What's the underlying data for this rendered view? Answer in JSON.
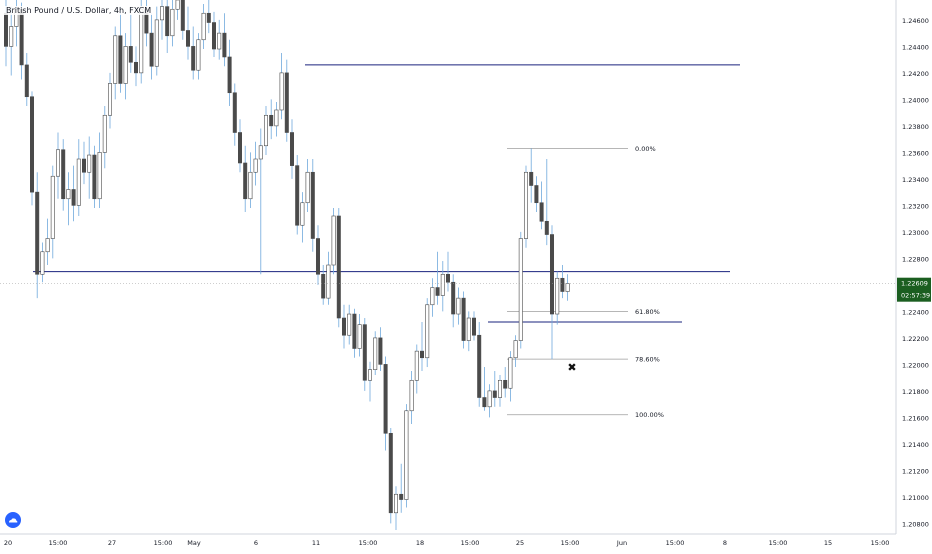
{
  "header": {
    "title": "British Pound / U.S. Dollar, 4h, FXCM"
  },
  "logo": {
    "name": "tradingview"
  },
  "colors": {
    "up_candle": "#ffffff",
    "down_candle": "#4a4a4a",
    "wick": "#6fa8dc",
    "horizontal_line": "#1a237e",
    "fib_line": "#9e9e9e",
    "price_label_bg": "#1b5e20",
    "axis_text": "#131722"
  },
  "chart_data": {
    "type": "candlestick",
    "title": "British Pound / U.S. Dollar, 4h, FXCM",
    "ylim": [
      1.2072,
      1.2475
    ],
    "y_ticks": [
      "1.24600",
      "1.24400",
      "1.24200",
      "1.24000",
      "1.23800",
      "1.23600",
      "1.23400",
      "1.23200",
      "1.23000",
      "1.22800",
      "1.22400",
      "1.22200",
      "1.22000",
      "1.21800",
      "1.21600",
      "1.21400",
      "1.21200",
      "1.21000",
      "1.20800"
    ],
    "x_ticks": [
      "20",
      "15:00",
      "27",
      "15:00",
      "May",
      "6",
      "11",
      "15:00",
      "18",
      "15:00",
      "25",
      "15:00",
      "Jun",
      "15:00",
      "8",
      "15:00",
      "15",
      "15:00"
    ],
    "last_price": "1.22609",
    "countdown": "02:57:39",
    "horizontal_levels": [
      1.2426,
      1.227,
      1.2232
    ],
    "fibonacci": [
      {
        "label": "0.00%",
        "value": 1.2363
      },
      {
        "label": "61.80%",
        "value": 1.224
      },
      {
        "label": "78.60%",
        "value": 1.2204
      },
      {
        "label": "100.00%",
        "value": 1.2162
      }
    ],
    "marker": {
      "symbol": "✖",
      "value": 1.2198
    },
    "candles": [
      {
        "o": 1.2465,
        "h": 1.248,
        "l": 1.2425,
        "c": 1.244
      },
      {
        "o": 1.244,
        "h": 1.247,
        "l": 1.2418,
        "c": 1.2455
      },
      {
        "o": 1.2455,
        "h": 1.2478,
        "l": 1.244,
        "c": 1.2468
      },
      {
        "o": 1.2468,
        "h": 1.2473,
        "l": 1.2415,
        "c": 1.2426
      },
      {
        "o": 1.2426,
        "h": 1.2435,
        "l": 1.2395,
        "c": 1.2402
      },
      {
        "o": 1.2402,
        "h": 1.2406,
        "l": 1.232,
        "c": 1.233
      },
      {
        "o": 1.233,
        "h": 1.2345,
        "l": 1.225,
        "c": 1.2268
      },
      {
        "o": 1.2268,
        "h": 1.2292,
        "l": 1.2262,
        "c": 1.2285
      },
      {
        "o": 1.2285,
        "h": 1.231,
        "l": 1.2275,
        "c": 1.2295
      },
      {
        "o": 1.2295,
        "h": 1.235,
        "l": 1.228,
        "c": 1.2342
      },
      {
        "o": 1.2342,
        "h": 1.2375,
        "l": 1.2325,
        "c": 1.2362
      },
      {
        "o": 1.2362,
        "h": 1.237,
        "l": 1.2316,
        "c": 1.2325
      },
      {
        "o": 1.2325,
        "h": 1.2345,
        "l": 1.2305,
        "c": 1.2332
      },
      {
        "o": 1.2332,
        "h": 1.235,
        "l": 1.2308,
        "c": 1.232
      },
      {
        "o": 1.232,
        "h": 1.237,
        "l": 1.2312,
        "c": 1.2355
      },
      {
        "o": 1.2355,
        "h": 1.2368,
        "l": 1.2336,
        "c": 1.2345
      },
      {
        "o": 1.2345,
        "h": 1.2372,
        "l": 1.2325,
        "c": 1.2358
      },
      {
        "o": 1.2358,
        "h": 1.2365,
        "l": 1.2318,
        "c": 1.2325
      },
      {
        "o": 1.2325,
        "h": 1.2375,
        "l": 1.2318,
        "c": 1.236
      },
      {
        "o": 1.236,
        "h": 1.2395,
        "l": 1.2348,
        "c": 1.2388
      },
      {
        "o": 1.2388,
        "h": 1.242,
        "l": 1.2378,
        "c": 1.2412
      },
      {
        "o": 1.2412,
        "h": 1.2455,
        "l": 1.24,
        "c": 1.2448
      },
      {
        "o": 1.2448,
        "h": 1.247,
        "l": 1.2405,
        "c": 1.2412
      },
      {
        "o": 1.2412,
        "h": 1.245,
        "l": 1.24,
        "c": 1.244
      },
      {
        "o": 1.244,
        "h": 1.2465,
        "l": 1.242,
        "c": 1.2428
      },
      {
        "o": 1.2428,
        "h": 1.244,
        "l": 1.241,
        "c": 1.242
      },
      {
        "o": 1.242,
        "h": 1.2475,
        "l": 1.2412,
        "c": 1.2468
      },
      {
        "o": 1.2468,
        "h": 1.248,
        "l": 1.244,
        "c": 1.245
      },
      {
        "o": 1.245,
        "h": 1.2465,
        "l": 1.2415,
        "c": 1.2425
      },
      {
        "o": 1.2425,
        "h": 1.247,
        "l": 1.2418,
        "c": 1.246
      },
      {
        "o": 1.246,
        "h": 1.248,
        "l": 1.2445,
        "c": 1.247
      },
      {
        "o": 1.247,
        "h": 1.2478,
        "l": 1.2435,
        "c": 1.2448
      },
      {
        "o": 1.2448,
        "h": 1.2475,
        "l": 1.244,
        "c": 1.2468
      },
      {
        "o": 1.2468,
        "h": 1.248,
        "l": 1.246,
        "c": 1.2475
      },
      {
        "o": 1.2475,
        "h": 1.2478,
        "l": 1.2445,
        "c": 1.2452
      },
      {
        "o": 1.2452,
        "h": 1.247,
        "l": 1.243,
        "c": 1.244
      },
      {
        "o": 1.244,
        "h": 1.2455,
        "l": 1.2415,
        "c": 1.2422
      },
      {
        "o": 1.2422,
        "h": 1.245,
        "l": 1.2415,
        "c": 1.2445
      },
      {
        "o": 1.2445,
        "h": 1.2472,
        "l": 1.2438,
        "c": 1.2465
      },
      {
        "o": 1.2465,
        "h": 1.2478,
        "l": 1.245,
        "c": 1.2458
      },
      {
        "o": 1.2458,
        "h": 1.2466,
        "l": 1.2432,
        "c": 1.2438
      },
      {
        "o": 1.2438,
        "h": 1.246,
        "l": 1.243,
        "c": 1.245
      },
      {
        "o": 1.245,
        "h": 1.2465,
        "l": 1.2425,
        "c": 1.2432
      },
      {
        "o": 1.2432,
        "h": 1.2445,
        "l": 1.2395,
        "c": 1.2405
      },
      {
        "o": 1.2405,
        "h": 1.2412,
        "l": 1.2365,
        "c": 1.2375
      },
      {
        "o": 1.2375,
        "h": 1.2385,
        "l": 1.2345,
        "c": 1.2352
      },
      {
        "o": 1.2352,
        "h": 1.2365,
        "l": 1.2315,
        "c": 1.2325
      },
      {
        "o": 1.2325,
        "h": 1.236,
        "l": 1.2318,
        "c": 1.2345
      },
      {
        "o": 1.2345,
        "h": 1.2368,
        "l": 1.2335,
        "c": 1.2355
      },
      {
        "o": 1.2355,
        "h": 1.2378,
        "l": 1.2268,
        "c": 1.2365
      },
      {
        "o": 1.2365,
        "h": 1.2395,
        "l": 1.2358,
        "c": 1.2388
      },
      {
        "o": 1.2388,
        "h": 1.24,
        "l": 1.237,
        "c": 1.238
      },
      {
        "o": 1.238,
        "h": 1.2398,
        "l": 1.2372,
        "c": 1.2392
      },
      {
        "o": 1.2392,
        "h": 1.2435,
        "l": 1.2385,
        "c": 1.242
      },
      {
        "o": 1.242,
        "h": 1.243,
        "l": 1.2368,
        "c": 1.2375
      },
      {
        "o": 1.2375,
        "h": 1.2385,
        "l": 1.234,
        "c": 1.235
      },
      {
        "o": 1.235,
        "h": 1.2358,
        "l": 1.2298,
        "c": 1.2305
      },
      {
        "o": 1.2305,
        "h": 1.233,
        "l": 1.2292,
        "c": 1.2322
      },
      {
        "o": 1.2322,
        "h": 1.2355,
        "l": 1.2315,
        "c": 1.2345
      },
      {
        "o": 1.2345,
        "h": 1.2355,
        "l": 1.2285,
        "c": 1.2295
      },
      {
        "o": 1.2295,
        "h": 1.2305,
        "l": 1.226,
        "c": 1.2268
      },
      {
        "o": 1.2268,
        "h": 1.2275,
        "l": 1.2245,
        "c": 1.225
      },
      {
        "o": 1.225,
        "h": 1.2285,
        "l": 1.2245,
        "c": 1.2275
      },
      {
        "o": 1.2275,
        "h": 1.2318,
        "l": 1.2268,
        "c": 1.2312
      },
      {
        "o": 1.2312,
        "h": 1.2318,
        "l": 1.2228,
        "c": 1.2235
      },
      {
        "o": 1.2235,
        "h": 1.2245,
        "l": 1.2212,
        "c": 1.2222
      },
      {
        "o": 1.2222,
        "h": 1.2245,
        "l": 1.2215,
        "c": 1.2238
      },
      {
        "o": 1.2238,
        "h": 1.2242,
        "l": 1.2205,
        "c": 1.2212
      },
      {
        "o": 1.2212,
        "h": 1.2238,
        "l": 1.2206,
        "c": 1.223
      },
      {
        "o": 1.223,
        "h": 1.2235,
        "l": 1.218,
        "c": 1.2188
      },
      {
        "o": 1.2188,
        "h": 1.2202,
        "l": 1.2172,
        "c": 1.2196
      },
      {
        "o": 1.2196,
        "h": 1.2225,
        "l": 1.2192,
        "c": 1.222
      },
      {
        "o": 1.222,
        "h": 1.2228,
        "l": 1.2195,
        "c": 1.22
      },
      {
        "o": 1.22,
        "h": 1.2206,
        "l": 1.2135,
        "c": 1.2148
      },
      {
        "o": 1.2148,
        "h": 1.2152,
        "l": 1.208,
        "c": 1.2088
      },
      {
        "o": 1.2088,
        "h": 1.2108,
        "l": 1.2075,
        "c": 1.2102
      },
      {
        "o": 1.2102,
        "h": 1.2125,
        "l": 1.2088,
        "c": 1.2098
      },
      {
        "o": 1.2098,
        "h": 1.217,
        "l": 1.2092,
        "c": 1.2165
      },
      {
        "o": 1.2165,
        "h": 1.2195,
        "l": 1.2155,
        "c": 1.2188
      },
      {
        "o": 1.2188,
        "h": 1.2215,
        "l": 1.2178,
        "c": 1.221
      },
      {
        "o": 1.221,
        "h": 1.2232,
        "l": 1.2195,
        "c": 1.2205
      },
      {
        "o": 1.2205,
        "h": 1.225,
        "l": 1.2198,
        "c": 1.2245
      },
      {
        "o": 1.2245,
        "h": 1.2265,
        "l": 1.2236,
        "c": 1.2258
      },
      {
        "o": 1.2258,
        "h": 1.2285,
        "l": 1.2245,
        "c": 1.2252
      },
      {
        "o": 1.2252,
        "h": 1.2278,
        "l": 1.224,
        "c": 1.2268
      },
      {
        "o": 1.2268,
        "h": 1.2285,
        "l": 1.2255,
        "c": 1.2262
      },
      {
        "o": 1.2262,
        "h": 1.2268,
        "l": 1.2228,
        "c": 1.2238
      },
      {
        "o": 1.2238,
        "h": 1.2258,
        "l": 1.223,
        "c": 1.225
      },
      {
        "o": 1.225,
        "h": 1.2255,
        "l": 1.2212,
        "c": 1.2218
      },
      {
        "o": 1.2218,
        "h": 1.224,
        "l": 1.221,
        "c": 1.2235
      },
      {
        "o": 1.2235,
        "h": 1.224,
        "l": 1.2218,
        "c": 1.2222
      },
      {
        "o": 1.2222,
        "h": 1.2232,
        "l": 1.2168,
        "c": 1.2175
      },
      {
        "o": 1.2175,
        "h": 1.2198,
        "l": 1.2165,
        "c": 1.2168
      },
      {
        "o": 1.2168,
        "h": 1.2185,
        "l": 1.216,
        "c": 1.218
      },
      {
        "o": 1.218,
        "h": 1.2195,
        "l": 1.2168,
        "c": 1.2175
      },
      {
        "o": 1.2175,
        "h": 1.2192,
        "l": 1.2168,
        "c": 1.2188
      },
      {
        "o": 1.2188,
        "h": 1.2198,
        "l": 1.2175,
        "c": 1.2182
      },
      {
        "o": 1.2182,
        "h": 1.221,
        "l": 1.2172,
        "c": 1.2205
      },
      {
        "o": 1.2205,
        "h": 1.2222,
        "l": 1.2198,
        "c": 1.2218
      },
      {
        "o": 1.2218,
        "h": 1.23,
        "l": 1.2212,
        "c": 1.2295
      },
      {
        "o": 1.2295,
        "h": 1.235,
        "l": 1.2288,
        "c": 1.2345
      },
      {
        "o": 1.2345,
        "h": 1.2363,
        "l": 1.2322,
        "c": 1.2335
      },
      {
        "o": 1.2335,
        "h": 1.2342,
        "l": 1.2315,
        "c": 1.2322
      },
      {
        "o": 1.2322,
        "h": 1.2338,
        "l": 1.2302,
        "c": 1.2308
      },
      {
        "o": 1.2308,
        "h": 1.2355,
        "l": 1.229,
        "c": 1.2298
      },
      {
        "o": 1.2298,
        "h": 1.2305,
        "l": 1.2204,
        "c": 1.2238
      },
      {
        "o": 1.2238,
        "h": 1.227,
        "l": 1.223,
        "c": 1.2265
      },
      {
        "o": 1.2265,
        "h": 1.2275,
        "l": 1.225,
        "c": 1.2255
      },
      {
        "o": 1.2255,
        "h": 1.2268,
        "l": 1.2248,
        "c": 1.2261
      }
    ]
  }
}
